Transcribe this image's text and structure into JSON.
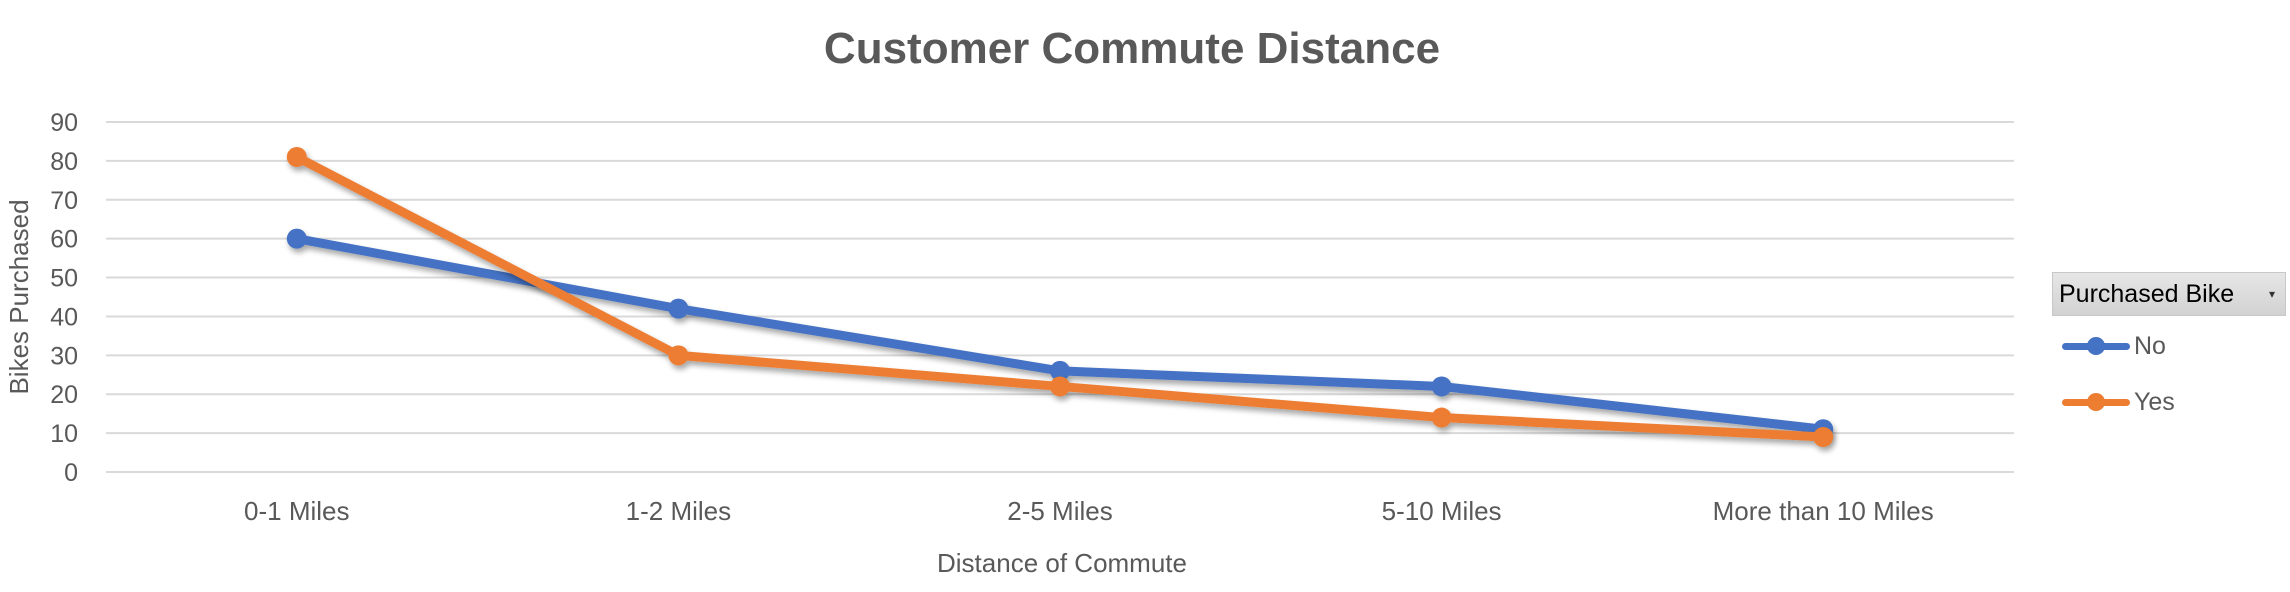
{
  "chart_data": {
    "type": "line",
    "title": "Customer Commute Distance",
    "xlabel": "Distance of Commute",
    "ylabel": "Bikes Purchased",
    "categories": [
      "0-1 Miles",
      "1-2 Miles",
      "2-5 Miles",
      "5-10 Miles",
      "More than 10 Miles"
    ],
    "ylim": [
      0,
      90
    ],
    "yticks": [
      "0",
      "10",
      "20",
      "30",
      "40",
      "50",
      "60",
      "70",
      "80",
      "90"
    ],
    "grid": true,
    "legend_title": "Purchased Bike",
    "legend_position": "right",
    "series": [
      {
        "name": "No",
        "color": "#4472C4",
        "values": [
          60,
          42,
          26,
          22,
          11
        ]
      },
      {
        "name": "Yes",
        "color": "#ED7D31",
        "values": [
          81,
          30,
          22,
          14,
          9
        ]
      }
    ]
  }
}
